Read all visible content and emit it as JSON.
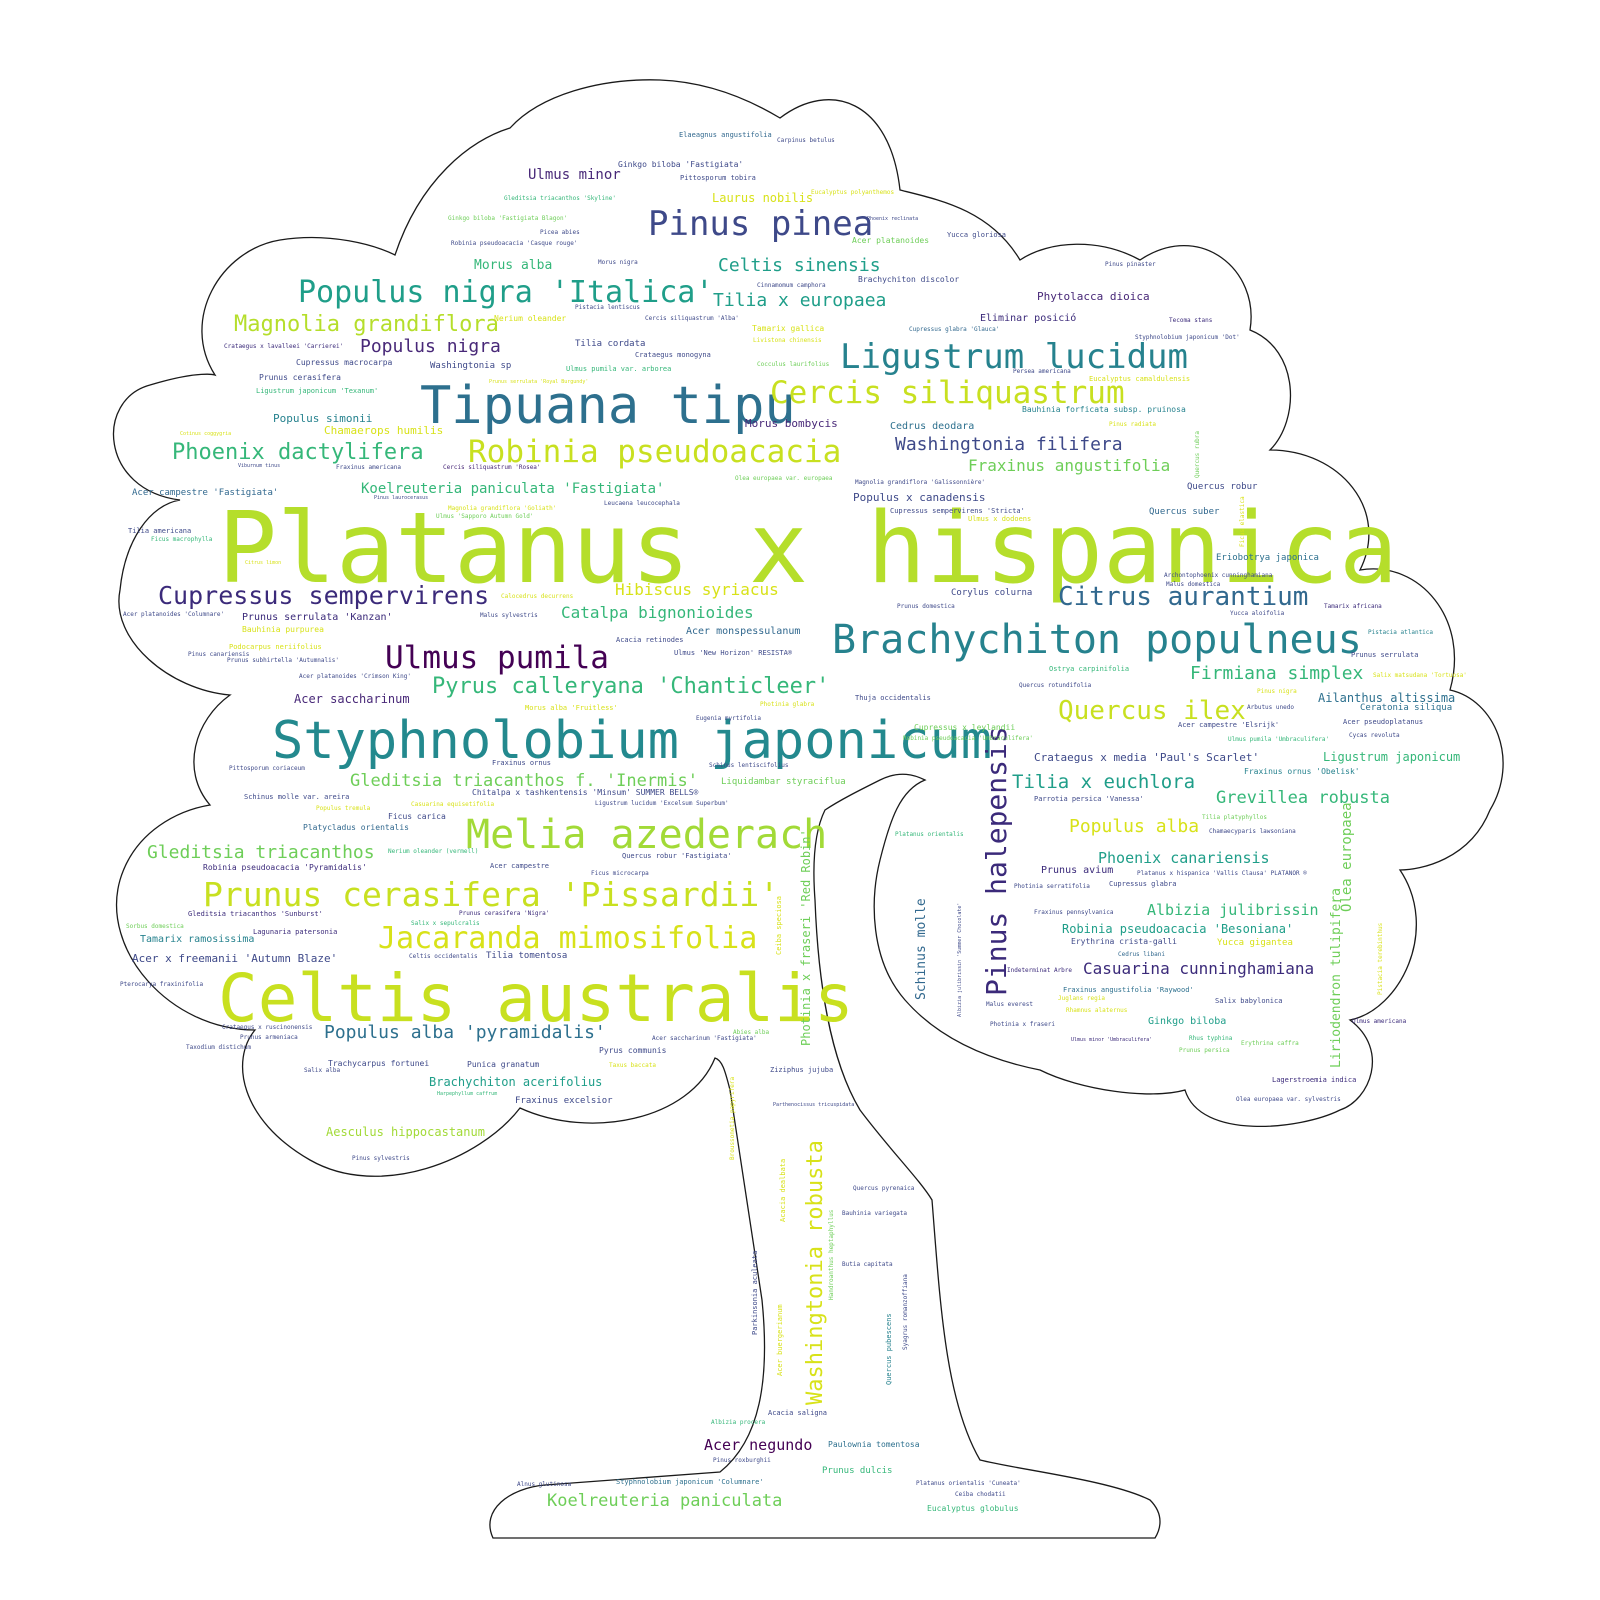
{
  "palette": {
    "lime": "#b5de2b",
    "yellow": "#d8e219",
    "green": "#6ece58",
    "mint": "#35b779",
    "teal": "#1f9e89",
    "cyan": "#26828e",
    "blue": "#31688e",
    "indigo": "#3e4989",
    "purple": "#482878",
    "dark": "#440154",
    "outline": "#1a1a1a"
  },
  "words": [
    "Platanus x hispanica",
    "Celtis australis",
    "Styphnolobium japonicum",
    "Tipuana tipu",
    "Brachychiton populneus",
    "Melia azederach",
    "Pinus pinea",
    "Robinia pseudoacacia",
    "Ligustrum lucidum",
    "Cercis siliquastrum",
    "Populus nigra 'Italica'",
    "Prunus cerasifera 'Pissardii'",
    "Jacaranda mimosifolia",
    "Ulmus pumila",
    "Cupressus sempervirens",
    "Citrus aurantium",
    "Pinus halepensis",
    "Washingtonia robusta",
    "Quercus ilex",
    "Phoenix dactylifera",
    "Pyrus calleryana 'Chanticleer'",
    "Magnolia grandiflora",
    "Celtis sinensis",
    "Tilia x europaea",
    "Populus nigra",
    "Washingtonia filifera",
    "Fraxinus angustifolia",
    "Firmiana simplex",
    "Tilia x euchlora",
    "Grevillea robusta",
    "Populus alba",
    "Phoenix canariensis",
    "Albizia julibrissin",
    "Casuarina cunninghamiana",
    "Gleditsia triacanthos",
    "Gleditsia triacanthos f. 'Inermis'",
    "Populus alba 'pyramidalis'",
    "Hibiscus syriacus",
    "Catalpa bignonioides",
    "Koelreuteria paniculata 'Fastigiata'",
    "Koelreuteria paniculata",
    "Photinia x fraseri 'Red Robin'",
    "Olea europaea",
    "Liriodendron tulipifera",
    "Schinus molle",
    "Acer negundo",
    "Ulmus minor",
    "Morus alba",
    "Laurus nobilis",
    "Aesculus hippocastanum",
    "Brachychiton acerifolius",
    "Acer saccharinum",
    "Ailanthus altissima",
    "Ligustrum japonicum",
    "Robinia pseudoacacia 'Besoniana'",
    "Crataegus x media 'Paul's Scarlet'",
    "Acer x freemanii 'Autumn Blaze'",
    "Tamarix ramosissima",
    "Populus simonii",
    "Chamaerops humilis",
    "Acer campestre 'Fastigiata'",
    "Quercus robur",
    "Quercus suber",
    "Eriobotrya japonica",
    "Populus x canadensis",
    "Cedrus deodara",
    "Morus bombycis",
    "Corylus colurna",
    "Acer monspessulanum",
    "Phytolacca dioica",
    "Eliminar posició",
    "Tilia cordata",
    "Washingtonia sp",
    "Cupressus macrocarpa",
    "Prunus cerasifera",
    "Ficus carica",
    "Platycladus orientalis",
    "Prunus serrulata 'Kanzan'",
    "Bauhinia purpurea",
    "Acer platanoides",
    "Yucca gloriosa",
    "Ginkgo biloba 'Fastigiata'",
    "Pittosporum tobira",
    "Elaeagnus angustifolia",
    "Carpinus betulus",
    "Brachychiton discolor",
    "Pinus pinaster",
    "Ginkgo biloba",
    "Yucca gigantea",
    "Cedrus libani",
    "Salix babylonica",
    "Lagerstroemia indica",
    "Olea europaea var. sylvestris",
    "Ulmus americana",
    "Prunus persica",
    "Prunus avium",
    "Cupressus glabra",
    "Fraxinus pennsylvanica",
    "Erythrina crista-galli",
    "Fraxinus angustifolia 'Raywood'",
    "Indeterminat Arbre",
    "Malus everest",
    "Juglans regia",
    "Photinia x fraseri",
    "Prunus dulcis",
    "Paulownia tomentosa",
    "Eucalyptus globulus",
    "Ceiba chodatii",
    "Platanus orientalis 'Cuneata'",
    "Styphnolobium japonicum 'Columnare'",
    "Alnus glutinosa",
    "Pinus roxburghii",
    "Acacia saligna",
    "Albizia procera",
    "Quercus pubescens",
    "Acer buergerianum",
    "Parkinsonia aculeata",
    "Acacia dealbata",
    "Quercus pyrenaica",
    "Bauhinia variegata",
    "Butia capitata",
    "Syagrus romanzoffiana",
    "Handroanthus heptaphyllus",
    "Broussonetia papyrifera",
    "Ziziphus jujuba",
    "Fraxinus excelsior",
    "Punica granatum",
    "Trachycarpus fortunei",
    "Pyrus communis",
    "Taxus baccata",
    "Acer saccharinum 'Fastigiata'",
    "Abies alba",
    "Pinus sylvestris",
    "Crataegus x ruscinonensis",
    "Prunus armeniaca",
    "Taxodium distichum",
    "Salix alba",
    "Pterocarya fraxinifolia",
    "Sorbus domestica",
    "Lagunaria patersonia",
    "Celtis occidentalis",
    "Tilia tomentosa",
    "Gleditsia triacanthos 'Sunburst'",
    "Robinia pseudoacacia 'Pyramidalis'",
    "Nerium oleander (vermell)",
    "Acer campestre",
    "Ficus microcarpa",
    "Quercus robur 'Fastigiata'",
    "Prunus cerasifera 'Nigra'",
    "Salix x sepulcralis",
    "Casuarina equisetifolia",
    "Chitalpa x tashkentensis 'Minsum' SUMMER BELLS®",
    "Ligustrum lucidum 'Excelsum Superbum'",
    "Liquidambar styraciflua",
    "Schinus molle var. areira",
    "Schinus lentiscifolius",
    "Pittosporum coriaceum",
    "Fraxinus ornus",
    "Eugenia myrtifolia",
    "Photinia glabra",
    "Thuja occidentalis",
    "Morus alba 'Fruitless'",
    "Acer platanoides 'Crimson King'",
    "Ulmus 'New Horizon' RESISTA®",
    "Acacia retinodes",
    "Malus sylvestris",
    "Calocedrus decurrens",
    "Prunus subhirtella 'Autumnalis'",
    "Pinus canariensis",
    "Podocarpus neriifolius",
    "Acer platanoides 'Columnare'",
    "Tilia americana",
    "Ficus macrophylla",
    "Leucaena leucocephala",
    "Ulmus 'Sapporo Autumn Gold'",
    "Magnolia grandiflora 'Goliath'",
    "Pinus laurocerasus",
    "Olea europaea var. europaea",
    "Magnolia grandiflora 'Galissonnière'",
    "Cupressus sempervirens 'Stricta'",
    "Ulmus x dodoens",
    "Fraxinus americana",
    "Cercis siliquastrum 'Rosea'",
    "Bauhinia forficata subsp. pruinosa",
    "Pinus radiata",
    "Eucalyptus camaldulensis",
    "Persea americana",
    "Styphnolobium japonicum 'Dot'",
    "Tecoma stans",
    "Cupressus glabra 'Glauca'",
    "Cocculus laurifolius",
    "Tamarix gallica",
    "Livistona chinensis",
    "Crataegus monogyna",
    "Ulmus pumila var. arborea",
    "Cinnamomum camphora",
    "Cercis siliquastrum 'Alba'",
    "Pistacia lentiscus",
    "Nerium oleander",
    "Crataegus x lavalleei 'Carrierei'",
    "Ligustrum japonicum 'Texanum'",
    "Prunus serrulata 'Royal Burgundy'",
    "Morus nigra",
    "Picea abies",
    "Robinia pseudoacacia 'Casque rouge'",
    "Ginkgo biloba 'Fastigiata Blagon'",
    "Gleditsia triacanthos 'Skyline'",
    "Phoenix reclinata",
    "Eucalyptus polyanthemos",
    "Tamarix africana",
    "Pistacia atlantica",
    "Prunus serrulata",
    "Salix matsudana 'Tortuosa'",
    "Pinus nigra",
    "Arbutus unedo",
    "Ceratonia siliqua",
    "Acer pseudoplatanus",
    "Cycas revoluta",
    "Acer campestre 'Elsrijk'",
    "Ulmus pumila 'Umbraculifera'",
    "Fraxinus ornus 'Obelisk'",
    "Ostrya carpinifolia",
    "Quercus rotundifolia",
    "Cupressus x leylandii",
    "Robinia pseudoacacia 'Umbraculifera'",
    "Parrotia persica 'Vanessa'",
    "Tilia platyphyllos",
    "Chamaecyparis lawsoniana",
    "Platanus orientalis",
    "Photinia serratifolia",
    "Platanus x hispanica 'Vallis Clausa' PLATANOR ®",
    "Archontophoenix cunninghamiana",
    "Malus domestica",
    "Yucca aloifolia",
    "Prunus domestica",
    "Rhus typhina",
    "Erythrina caffra",
    "Ulmus minor 'Umbraculifera'",
    "Albizia julibrissin 'Summer Chocolate'",
    "Quercus rubra",
    "Ficus elastica",
    "Pistacia terebinthus",
    "Ceiba speciosa",
    "Harpephyllum caffrum",
    "Parthenocissus tricuspidata",
    "Rhamnus alaternus",
    "Populus tremula",
    "Viburnum tinus",
    "Citrus limon",
    "Cotinus coggygria"
  ]
}
